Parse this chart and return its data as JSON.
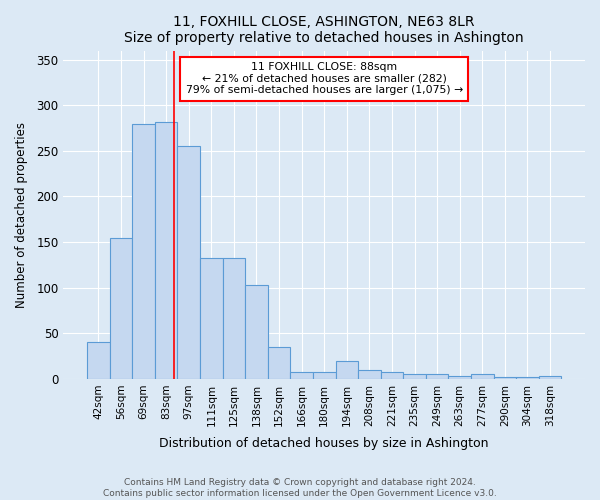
{
  "title": "11, FOXHILL CLOSE, ASHINGTON, NE63 8LR",
  "subtitle": "Size of property relative to detached houses in Ashington",
  "xlabel": "Distribution of detached houses by size in Ashington",
  "ylabel": "Number of detached properties",
  "categories": [
    "42sqm",
    "56sqm",
    "69sqm",
    "83sqm",
    "97sqm",
    "111sqm",
    "125sqm",
    "138sqm",
    "152sqm",
    "166sqm",
    "180sqm",
    "194sqm",
    "208sqm",
    "221sqm",
    "235sqm",
    "249sqm",
    "263sqm",
    "277sqm",
    "290sqm",
    "304sqm",
    "318sqm"
  ],
  "values": [
    40,
    155,
    280,
    282,
    255,
    133,
    133,
    103,
    35,
    8,
    8,
    20,
    10,
    8,
    5,
    5,
    3,
    5,
    2,
    2,
    3
  ],
  "bar_color": "#c5d8f0",
  "bar_edge_color": "#5b9bd5",
  "annotation_line1": "11 FOXHILL CLOSE: 88sqm",
  "annotation_line2": "← 21% of detached houses are smaller (282)",
  "annotation_line3": "79% of semi-detached houses are larger (1,075) →",
  "ylim": [
    0,
    360
  ],
  "yticks": [
    0,
    50,
    100,
    150,
    200,
    250,
    300,
    350
  ],
  "footer1": "Contains HM Land Registry data © Crown copyright and database right 2024.",
  "footer2": "Contains public sector information licensed under the Open Government Licence v3.0.",
  "background_color": "#dce9f5",
  "plot_bg_color": "#dce9f5",
  "bar_width": 1.0,
  "red_line_index": 3.36
}
